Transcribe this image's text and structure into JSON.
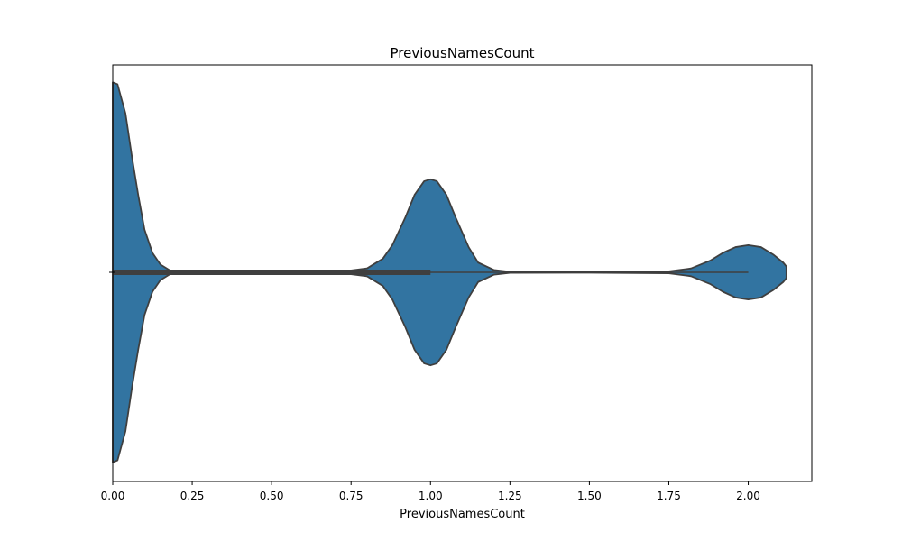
{
  "chart_data": {
    "type": "violin",
    "orientation": "horizontal",
    "title": "PreviousNamesCount",
    "xlabel": "PreviousNamesCount",
    "ylabel": "",
    "xlim": [
      0.0,
      2.2
    ],
    "xticks": [
      0.0,
      0.25,
      0.5,
      0.75,
      1.0,
      1.25,
      1.5,
      1.75,
      2.0
    ],
    "xtick_labels": [
      "0.00",
      "0.25",
      "0.50",
      "0.75",
      "1.00",
      "1.25",
      "1.50",
      "1.75",
      "2.00"
    ],
    "grid": false,
    "legend": "none",
    "series": [
      {
        "fill_color": "#3274a1",
        "line_color": "#3f3f3f",
        "density": {
          "x": [
            0.0,
            0.015,
            0.04,
            0.06,
            0.08,
            0.1,
            0.125,
            0.15,
            0.18,
            0.2,
            0.25,
            0.5,
            0.75,
            0.8,
            0.85,
            0.88,
            0.92,
            0.95,
            0.98,
            1.0,
            1.02,
            1.05,
            1.08,
            1.12,
            1.15,
            1.2,
            1.25,
            1.5,
            1.75,
            1.82,
            1.88,
            1.92,
            1.96,
            2.0,
            2.04,
            2.08,
            2.11,
            2.12
          ],
          "half_width": [
            0.98,
            0.97,
            0.82,
            0.6,
            0.4,
            0.22,
            0.1,
            0.04,
            0.01,
            0.005,
            0.004,
            0.004,
            0.01,
            0.02,
            0.07,
            0.14,
            0.28,
            0.4,
            0.47,
            0.48,
            0.47,
            0.4,
            0.28,
            0.13,
            0.05,
            0.012,
            0.003,
            0.002,
            0.005,
            0.02,
            0.06,
            0.1,
            0.13,
            0.14,
            0.13,
            0.09,
            0.05,
            0.03
          ]
        },
        "box": {
          "q1": 0.0,
          "median": 0.0,
          "q3": 1.0,
          "whisker_low": 0.0,
          "whisker_high": 2.0
        }
      }
    ]
  }
}
